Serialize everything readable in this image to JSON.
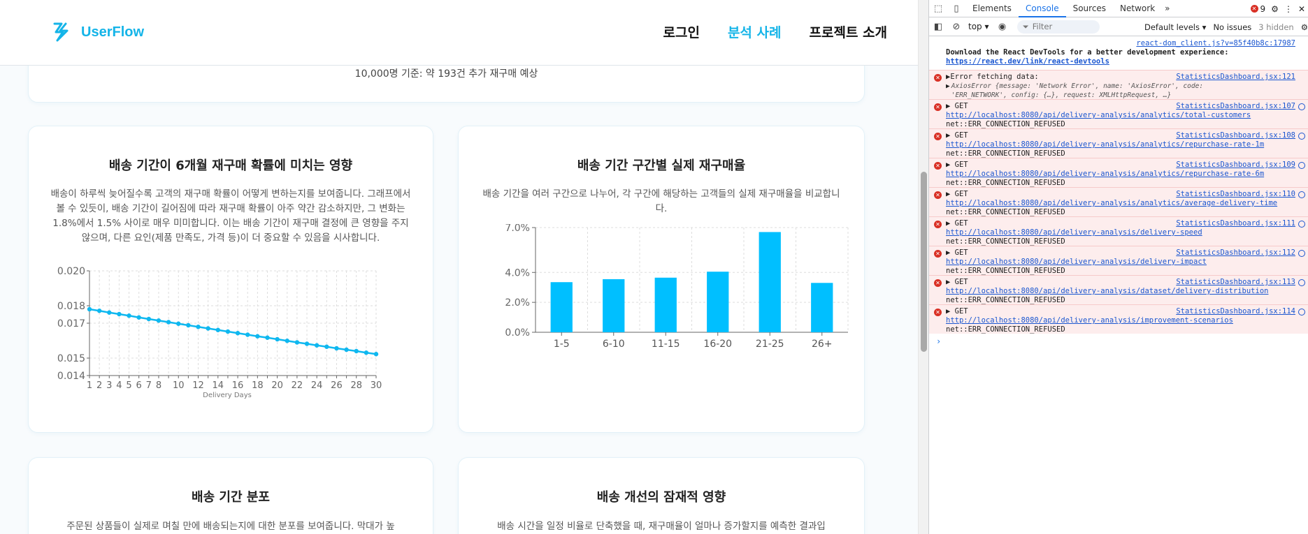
{
  "app": {
    "logo_text": "UserFlow",
    "nav": [
      "로그인",
      "분석 사례",
      "프로젝트 소개"
    ],
    "nav_active_index": 1
  },
  "top_card": {
    "text": "10,000명 기준: 약 193건 추가 재구매 예상"
  },
  "line_card": {
    "title": "배송 기간이 6개월 재구매 확률에 미치는 영향",
    "description": "배송이 하루씩 늦어질수록 고객의 재구매 확률이 어떻게 변하는지를 보여줍니다. 그래프에서 볼 수 있듯이, 배송 기간이 길어짐에 따라 재구매 확률이 아주 약간 감소하지만, 그 변화는 1.8%에서 1.5% 사이로 매우 미미합니다. 이는 배송 기간이 재구매 결정에 큰 영향을 주지 않으며, 다른 요인(제품 만족도, 가격 등)이 더 중요할 수 있음을 시사합니다."
  },
  "bar_card": {
    "title": "배송 기간 구간별 실제 재구매율",
    "description": "배송 기간을 여러 구간으로 나누어, 각 구간에 해당하는 고객들의 실제 재구매율을 비교합니다."
  },
  "bottom_left_card": {
    "title": "배송 기간 분포",
    "description": "주문된 상품들이 실제로 며칠 만에 배송되는지에 대한 분포를 보여줍니다. 막대가 높"
  },
  "bottom_right_card": {
    "title": "배송 개선의 잠재적 영향",
    "description": "배송 시간을 일정 비율로 단축했을 때, 재구매율이 얼마나 증가할지를 예측한 결과입"
  },
  "chart_data": [
    {
      "type": "line",
      "xlabel": "Delivery Days",
      "ylabel": "",
      "x": [
        1,
        2,
        3,
        4,
        5,
        6,
        7,
        8,
        9,
        10,
        11,
        12,
        13,
        14,
        15,
        16,
        17,
        18,
        19,
        20,
        21,
        22,
        23,
        24,
        25,
        26,
        27,
        28,
        29,
        30
      ],
      "series": [
        {
          "values": [
            0.0178,
            0.01771,
            0.01761,
            0.01752,
            0.01743,
            0.01733,
            0.01724,
            0.01715,
            0.01706,
            0.01697,
            0.01688,
            0.01679,
            0.0167,
            0.01661,
            0.01652,
            0.01643,
            0.01634,
            0.01625,
            0.01617,
            0.01608,
            0.01599,
            0.0159,
            0.01582,
            0.01573,
            0.01565,
            0.01556,
            0.01548,
            0.0154,
            0.01531,
            0.01523
          ]
        }
      ],
      "x_ticks": [
        1,
        2,
        3,
        4,
        5,
        6,
        7,
        8,
        10,
        12,
        14,
        16,
        18,
        20,
        22,
        24,
        26,
        28,
        30
      ],
      "y_ticks": [
        "0.014",
        "0.015",
        "0.017",
        "0.018",
        "0.020"
      ],
      "y_tick_values": [
        0.014,
        0.015,
        0.017,
        0.018,
        0.02
      ],
      "ylim": [
        0.014,
        0.02
      ],
      "xlim": [
        1,
        30
      ],
      "grid": true,
      "color": "#0fb8f0"
    },
    {
      "type": "bar",
      "categories": [
        "1-5",
        "6-10",
        "11-15",
        "16-20",
        "21-25",
        "26+"
      ],
      "values": [
        3.35,
        3.55,
        3.65,
        4.05,
        6.7,
        3.3
      ],
      "y_ticks": [
        "0.0%",
        "2.0%",
        "4.0%",
        "7.0%"
      ],
      "y_tick_values": [
        0,
        2,
        4,
        7
      ],
      "ylim": [
        0,
        7
      ],
      "grid": true,
      "color": "#00bfff"
    }
  ],
  "devtools": {
    "tabs": [
      "Elements",
      "Console",
      "Sources",
      "Network"
    ],
    "active_tab": "Console",
    "more_tabs": "»",
    "error_count": "9",
    "context": "top",
    "filter_placeholder": "Filter",
    "levels": "Default levels",
    "issues": "No issues",
    "hidden": "3 hidden",
    "info_src": "react-dom_client.js?v=85f40b8c:17987",
    "info_text": "Download the React DevTools for a better development experience:",
    "info_link": "https://react.dev/link/react-devtools",
    "axios_src": "StatisticsDashboard.jsx:121",
    "axios_head": "Error fetching data:",
    "axios_detail": "AxiosError {message: 'Network Error', name: 'AxiosError', code: 'ERR_NETWORK', config: {…}, request: XMLHttpRequest, …}",
    "requests": [
      {
        "src": "StatisticsDashboard.jsx:107",
        "url": "http://localhost:8080/api/delivery-analysis/analytics/total-customers"
      },
      {
        "src": "StatisticsDashboard.jsx:108",
        "url": "http://localhost:8080/api/delivery-analysis/analytics/repurchase-rate-1m"
      },
      {
        "src": "StatisticsDashboard.jsx:109",
        "url": "http://localhost:8080/api/delivery-analysis/analytics/repurchase-rate-6m"
      },
      {
        "src": "StatisticsDashboard.jsx:110",
        "url": "http://localhost:8080/api/delivery-analysis/analytics/average-delivery-time"
      },
      {
        "src": "StatisticsDashboard.jsx:111",
        "url": "http://localhost:8080/api/delivery-analysis/delivery-speed"
      },
      {
        "src": "StatisticsDashboard.jsx:112",
        "url": "http://localhost:8080/api/delivery-analysis/delivery-impact"
      },
      {
        "src": "StatisticsDashboard.jsx:113",
        "url": "http://localhost:8080/api/delivery-analysis/dataset/delivery-distribution"
      },
      {
        "src": "StatisticsDashboard.jsx:114",
        "url": "http://localhost:8080/api/delivery-analysis/improvement-scenarios"
      }
    ],
    "request_method": "▶ GET",
    "request_error": "net::ERR_CONNECTION_REFUSED",
    "prompt": "›"
  }
}
